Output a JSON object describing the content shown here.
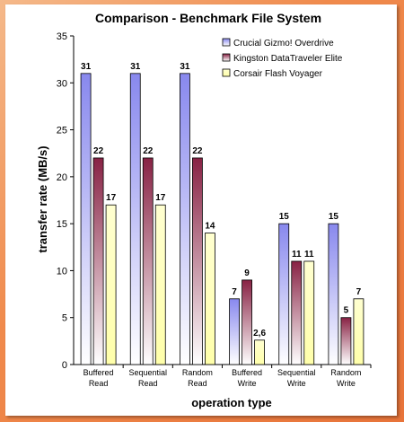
{
  "chart_data": {
    "type": "bar",
    "title": "Comparison - Benchmark File System",
    "xlabel": "operation type",
    "ylabel": "transfer rate (MB/s)",
    "ylim": [
      0,
      35
    ],
    "yticks": [
      0,
      5,
      10,
      15,
      20,
      25,
      30,
      35
    ],
    "categories": [
      [
        "Buffered",
        "Read"
      ],
      [
        "Sequential",
        "Read"
      ],
      [
        "Random",
        "Read"
      ],
      [
        "Buffered",
        "Write"
      ],
      [
        "Sequential",
        "Write"
      ],
      [
        "Random",
        "Write"
      ]
    ],
    "series": [
      {
        "name": "Crucial Gizmo! Overdrive",
        "values": [
          31,
          31,
          31,
          7,
          15,
          15
        ],
        "labels": [
          "31",
          "31",
          "31",
          "7",
          "15",
          "15"
        ],
        "color_top": "#8888ee",
        "color_bottom": "#ffffff"
      },
      {
        "name": "Kingston DataTraveler Elite",
        "values": [
          22,
          22,
          22,
          9,
          11,
          5
        ],
        "labels": [
          "22",
          "22",
          "22",
          "9",
          "11",
          "5"
        ],
        "color_top": "#882244",
        "color_bottom": "#ffffff"
      },
      {
        "name": "Corsair Flash Voyager",
        "values": [
          17,
          17,
          14,
          2.6,
          11,
          7
        ],
        "labels": [
          "17",
          "17",
          "14",
          "2,6",
          "11",
          "7"
        ],
        "color_top": "#ffffd0",
        "color_bottom": "#ffffaa"
      }
    ],
    "grid": false,
    "legend_position": "top-right"
  }
}
